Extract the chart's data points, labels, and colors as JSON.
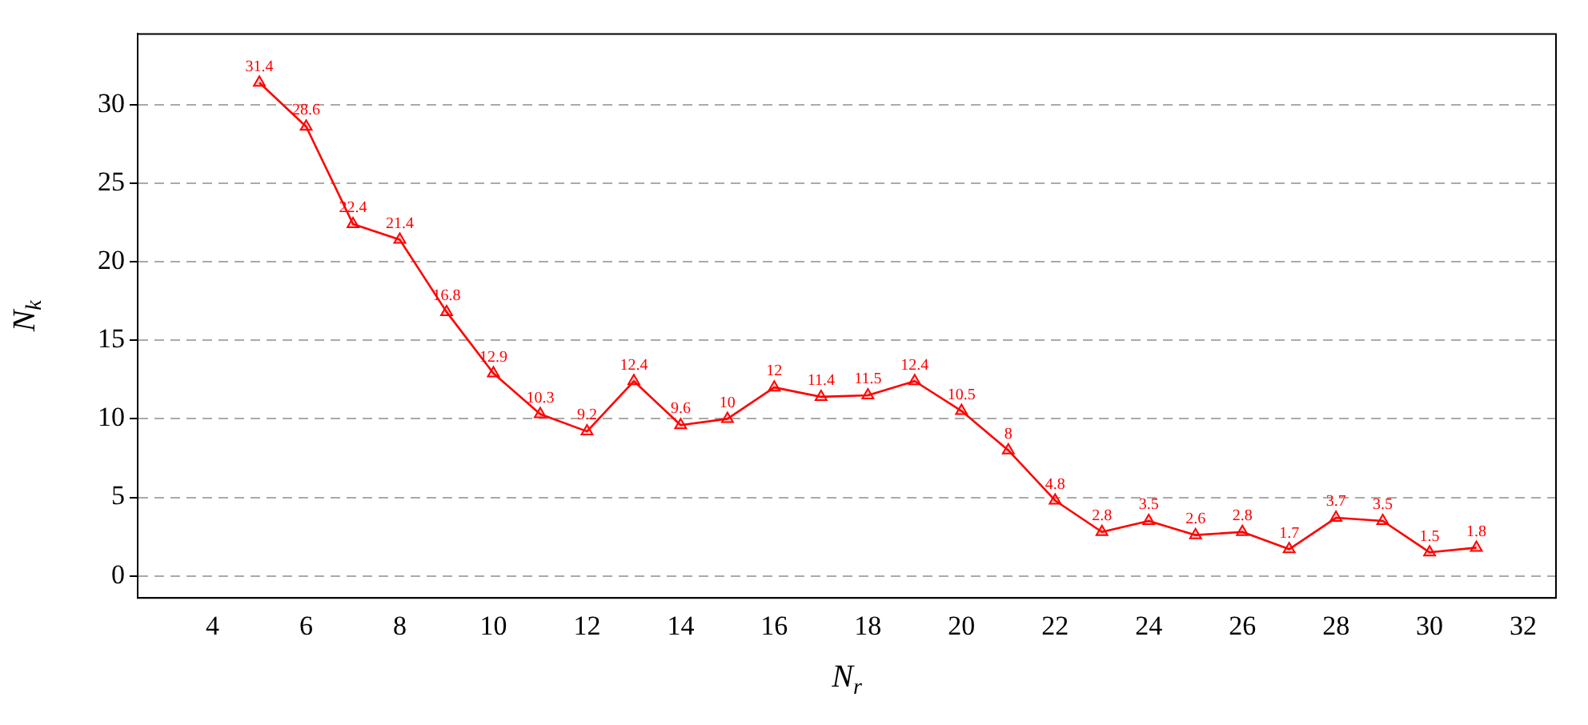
{
  "chart_data": {
    "type": "line",
    "xlabel": "N$_{r}$",
    "ylabel": "N$_{k}$",
    "x": [
      5,
      6,
      7,
      8,
      9,
      10,
      11,
      12,
      13,
      14,
      15,
      16,
      17,
      18,
      19,
      20,
      21,
      22,
      23,
      24,
      25,
      26,
      27,
      28,
      29,
      30,
      31
    ],
    "series": [
      {
        "color": "#ff0000",
        "values": [
          31.4,
          28.6,
          22.4,
          21.4,
          16.8,
          12.9,
          10.3,
          9.2,
          12.4,
          9.6,
          10,
          12,
          11.4,
          11.5,
          12.4,
          10.5,
          8,
          4.8,
          2.8,
          3.5,
          2.6,
          2.8,
          1.7,
          3.7,
          3.5,
          1.5,
          1.8
        ]
      }
    ],
    "xlim": [
      2.4,
      32.7
    ],
    "xticks": [
      4,
      6,
      8,
      10,
      12,
      14,
      16,
      18,
      20,
      22,
      24,
      26,
      28,
      30,
      32
    ],
    "ylim": [
      -1.4,
      34.5
    ],
    "yticks": [
      0,
      5,
      10,
      15,
      20,
      25,
      30
    ],
    "grid": "y",
    "marker": "triangle",
    "line_style": "solid",
    "data_labels": true
  }
}
